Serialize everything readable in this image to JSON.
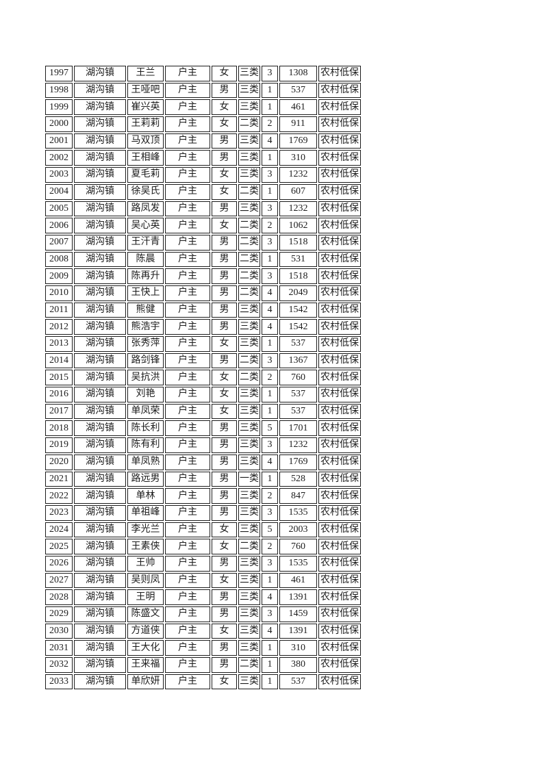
{
  "page": {
    "background": "#ffffff",
    "text_color": "#1c1c1c",
    "border_color": "#1a1a1a"
  },
  "table": {
    "first_row_number": "1997",
    "last_row_number": "2033",
    "rows": [
      [
        "1997",
        "湖沟镇",
        "王兰",
        "户主",
        "女",
        "三类",
        "3",
        "1308",
        "农村低保"
      ],
      [
        "1998",
        "湖沟镇",
        "王哑吧",
        "户主",
        "男",
        "三类",
        "1",
        "537",
        "农村低保"
      ],
      [
        "1999",
        "湖沟镇",
        "崔兴英",
        "户主",
        "女",
        "三类",
        "1",
        "461",
        "农村低保"
      ],
      [
        "2000",
        "湖沟镇",
        "王莉莉",
        "户主",
        "女",
        "二类",
        "2",
        "911",
        "农村低保"
      ],
      [
        "2001",
        "湖沟镇",
        "马双顶",
        "户主",
        "男",
        "三类",
        "4",
        "1769",
        "农村低保"
      ],
      [
        "2002",
        "湖沟镇",
        "王相峰",
        "户主",
        "男",
        "三类",
        "1",
        "310",
        "农村低保"
      ],
      [
        "2003",
        "湖沟镇",
        "夏毛莉",
        "户主",
        "女",
        "三类",
        "3",
        "1232",
        "农村低保"
      ],
      [
        "2004",
        "湖沟镇",
        "徐吴氏",
        "户主",
        "女",
        "二类",
        "1",
        "607",
        "农村低保"
      ],
      [
        "2005",
        "湖沟镇",
        "路凤发",
        "户主",
        "男",
        "三类",
        "3",
        "1232",
        "农村低保"
      ],
      [
        "2006",
        "湖沟镇",
        "吴心英",
        "户主",
        "女",
        "二类",
        "2",
        "1062",
        "农村低保"
      ],
      [
        "2007",
        "湖沟镇",
        "王汗青",
        "户主",
        "男",
        "二类",
        "3",
        "1518",
        "农村低保"
      ],
      [
        "2008",
        "湖沟镇",
        "陈晨",
        "户主",
        "男",
        "二类",
        "1",
        "531",
        "农村低保"
      ],
      [
        "2009",
        "湖沟镇",
        "陈再升",
        "户主",
        "男",
        "二类",
        "3",
        "1518",
        "农村低保"
      ],
      [
        "2010",
        "湖沟镇",
        "王快上",
        "户主",
        "男",
        "二类",
        "4",
        "2049",
        "农村低保"
      ],
      [
        "2011",
        "湖沟镇",
        "熊健",
        "户主",
        "男",
        "三类",
        "4",
        "1542",
        "农村低保"
      ],
      [
        "2012",
        "湖沟镇",
        "熊浩宇",
        "户主",
        "男",
        "三类",
        "4",
        "1542",
        "农村低保"
      ],
      [
        "2013",
        "湖沟镇",
        "张秀萍",
        "户主",
        "女",
        "三类",
        "1",
        "537",
        "农村低保"
      ],
      [
        "2014",
        "湖沟镇",
        "路剑锋",
        "户主",
        "男",
        "二类",
        "3",
        "1367",
        "农村低保"
      ],
      [
        "2015",
        "湖沟镇",
        "吴抗洪",
        "户主",
        "女",
        "二类",
        "2",
        "760",
        "农村低保"
      ],
      [
        "2016",
        "湖沟镇",
        "刘艳",
        "户主",
        "女",
        "三类",
        "1",
        "537",
        "农村低保"
      ],
      [
        "2017",
        "湖沟镇",
        "单凤荣",
        "户主",
        "女",
        "三类",
        "1",
        "537",
        "农村低保"
      ],
      [
        "2018",
        "湖沟镇",
        "陈长利",
        "户主",
        "男",
        "三类",
        "5",
        "1701",
        "农村低保"
      ],
      [
        "2019",
        "湖沟镇",
        "陈有利",
        "户主",
        "男",
        "三类",
        "3",
        "1232",
        "农村低保"
      ],
      [
        "2020",
        "湖沟镇",
        "单凤熟",
        "户主",
        "男",
        "三类",
        "4",
        "1769",
        "农村低保"
      ],
      [
        "2021",
        "湖沟镇",
        "路远男",
        "户主",
        "男",
        "一类",
        "1",
        "528",
        "农村低保"
      ],
      [
        "2022",
        "湖沟镇",
        "单林",
        "户主",
        "男",
        "三类",
        "2",
        "847",
        "农村低保"
      ],
      [
        "2023",
        "湖沟镇",
        "单祖峰",
        "户主",
        "男",
        "三类",
        "3",
        "1535",
        "农村低保"
      ],
      [
        "2024",
        "湖沟镇",
        "李光兰",
        "户主",
        "女",
        "三类",
        "5",
        "2003",
        "农村低保"
      ],
      [
        "2025",
        "湖沟镇",
        "王素侠",
        "户主",
        "女",
        "二类",
        "2",
        "760",
        "农村低保"
      ],
      [
        "2026",
        "湖沟镇",
        "王帅",
        "户主",
        "男",
        "三类",
        "3",
        "1535",
        "农村低保"
      ],
      [
        "2027",
        "湖沟镇",
        "吴则凤",
        "户主",
        "女",
        "三类",
        "1",
        "461",
        "农村低保"
      ],
      [
        "2028",
        "湖沟镇",
        "王明",
        "户主",
        "男",
        "三类",
        "4",
        "1391",
        "农村低保"
      ],
      [
        "2029",
        "湖沟镇",
        "陈盛文",
        "户主",
        "男",
        "三类",
        "3",
        "1459",
        "农村低保"
      ],
      [
        "2030",
        "湖沟镇",
        "方道侠",
        "户主",
        "女",
        "三类",
        "4",
        "1391",
        "农村低保"
      ],
      [
        "2031",
        "湖沟镇",
        "王大化",
        "户主",
        "男",
        "三类",
        "1",
        "310",
        "农村低保"
      ],
      [
        "2032",
        "湖沟镇",
        "王来福",
        "户主",
        "男",
        "二类",
        "1",
        "380",
        "农村低保"
      ],
      [
        "2033",
        "湖沟镇",
        "单欣妍",
        "户主",
        "女",
        "三类",
        "1",
        "537",
        "农村低保"
      ]
    ]
  }
}
